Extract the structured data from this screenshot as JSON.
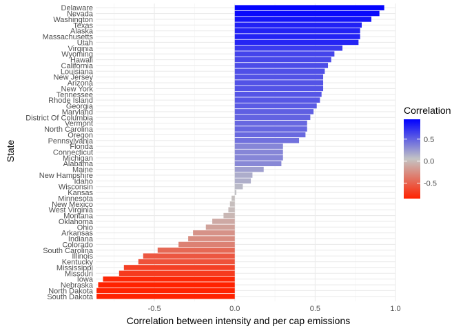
{
  "chart_data": {
    "type": "bar",
    "orientation": "horizontal",
    "xlabel": "Correlation between intensity and per cap emissions",
    "ylabel": "State",
    "xlim": [
      -0.865,
      1.0
    ],
    "x_ticks": [
      -0.5,
      0.0,
      0.5,
      1.0
    ],
    "x_tick_labels": [
      "-0.5",
      "0.0",
      "0.5",
      "1.0"
    ],
    "grid": true,
    "legend": {
      "title": "Correlation",
      "placement": "right",
      "range": [
        -0.85,
        0.95
      ],
      "ticks": [
        0.5,
        0.0,
        -0.5
      ],
      "tick_labels": [
        "0.5",
        "0.0",
        "-0.5"
      ],
      "colors": {
        "low": "#ff2200",
        "mid": "#c4c4c4",
        "high": "#0000ff"
      }
    },
    "categories": [
      "Delaware",
      "Nevada",
      "Washington",
      "Texas",
      "Alaska",
      "Massachusetts",
      "Utah",
      "Virginia",
      "Wyoming",
      "Hawaii",
      "California",
      "Louisiana",
      "New Jersey",
      "Arizona",
      "New York",
      "Tennessee",
      "Rhode Island",
      "Georgia",
      "Maryland",
      "District Of Columbia",
      "Vermont",
      "North Carolina",
      "Oregon",
      "Pennsylvania",
      "Florida",
      "Connecticut",
      "Michigan",
      "Alabama",
      "Maine",
      "New Hampshire",
      "Idaho",
      "Wisconsin",
      "Kansas",
      "Minnesota",
      "New Mexico",
      "West Virginia",
      "Montana",
      "Oklahoma",
      "Ohio",
      "Arkansas",
      "Indiana",
      "Colorado",
      "South Carolina",
      "Illinois",
      "Kentucky",
      "Mississippi",
      "Missouri",
      "Iowa",
      "Nebraska",
      "North Dakota",
      "South Dakota"
    ],
    "values": [
      0.93,
      0.9,
      0.85,
      0.79,
      0.78,
      0.78,
      0.77,
      0.67,
      0.62,
      0.6,
      0.58,
      0.56,
      0.55,
      0.55,
      0.55,
      0.54,
      0.53,
      0.51,
      0.49,
      0.47,
      0.45,
      0.45,
      0.44,
      0.4,
      0.3,
      0.3,
      0.3,
      0.29,
      0.18,
      0.11,
      0.1,
      0.05,
      0.01,
      -0.02,
      -0.03,
      -0.04,
      -0.07,
      -0.14,
      -0.18,
      -0.26,
      -0.29,
      -0.35,
      -0.48,
      -0.57,
      -0.6,
      -0.69,
      -0.72,
      -0.82,
      -0.85,
      -0.86,
      -0.86
    ]
  }
}
